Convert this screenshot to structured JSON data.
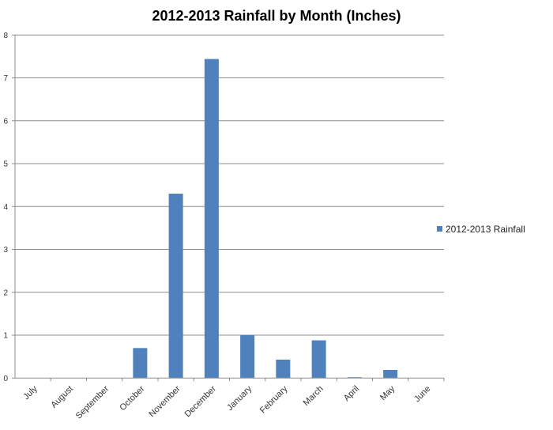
{
  "chart_data": {
    "type": "bar",
    "title": "2012-2013 Rainfall by Month (Inches)",
    "xlabel": "",
    "ylabel": "",
    "categories": [
      "July",
      "August",
      "September",
      "October",
      "November",
      "December",
      "January",
      "February",
      "March",
      "April",
      "May",
      "June"
    ],
    "series": [
      {
        "name": "2012-2013 Rainfall",
        "values": [
          0,
          0,
          0,
          0.7,
          4.3,
          7.44,
          1.0,
          0.43,
          0.88,
          0.02,
          0.19,
          0
        ],
        "color": "#4f81bd"
      }
    ],
    "ylim": [
      0,
      8
    ],
    "yticks": [
      "0",
      "1",
      "2",
      "3",
      "4",
      "5",
      "6",
      "7",
      "8"
    ],
    "grid": true,
    "legend_position": "right"
  }
}
